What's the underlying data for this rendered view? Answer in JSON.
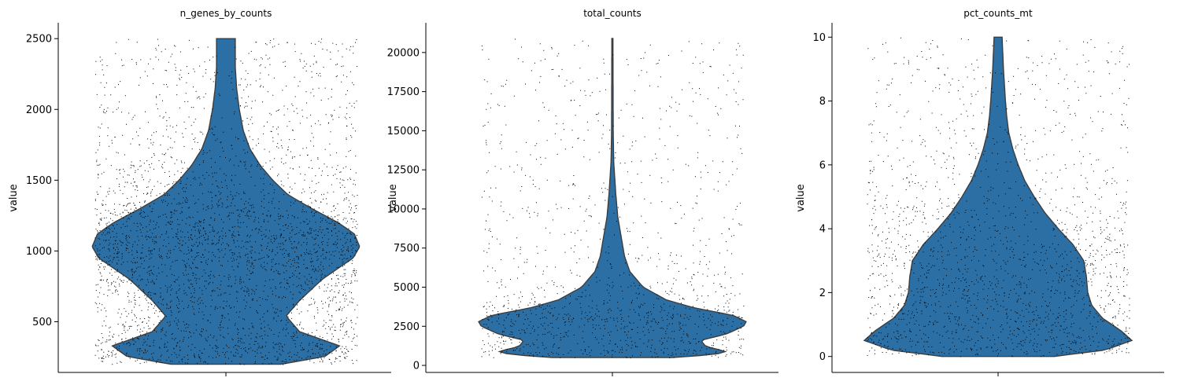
{
  "chart_data": [
    {
      "type": "violin",
      "title": "n_genes_by_counts",
      "ylabel": "value",
      "ylim": [
        142,
        2612
      ],
      "yticks": [
        500,
        1000,
        1500,
        2000,
        2500
      ],
      "y_tick_labels": [
        "500",
        "1000",
        "1500",
        "2000",
        "2500"
      ],
      "x_tick_labels": [
        ""
      ],
      "grid": false,
      "fill_color": "#2b6fa5",
      "point_color": "#000000",
      "range": [
        200,
        2500
      ],
      "density_profile": [
        {
          "value": 200,
          "width": 0.41
        },
        {
          "value": 255,
          "width": 0.74
        },
        {
          "value": 330,
          "width": 0.85
        },
        {
          "value": 430,
          "width": 0.55
        },
        {
          "value": 540,
          "width": 0.45
        },
        {
          "value": 650,
          "width": 0.55
        },
        {
          "value": 800,
          "width": 0.72
        },
        {
          "value": 950,
          "width": 0.95
        },
        {
          "value": 1030,
          "width": 1.0
        },
        {
          "value": 1120,
          "width": 0.96
        },
        {
          "value": 1200,
          "width": 0.84
        },
        {
          "value": 1300,
          "width": 0.64
        },
        {
          "value": 1400,
          "width": 0.46
        },
        {
          "value": 1500,
          "width": 0.35
        },
        {
          "value": 1600,
          "width": 0.26
        },
        {
          "value": 1720,
          "width": 0.18
        },
        {
          "value": 1850,
          "width": 0.13
        },
        {
          "value": 2000,
          "width": 0.1
        },
        {
          "value": 2150,
          "width": 0.08
        },
        {
          "value": 2300,
          "width": 0.07
        },
        {
          "value": 2400,
          "width": 0.07
        },
        {
          "value": 2500,
          "width": 0.07
        }
      ]
    },
    {
      "type": "violin",
      "title": "total_counts",
      "ylabel": "value",
      "ylim": [
        -450,
        21900
      ],
      "yticks": [
        0,
        2500,
        5000,
        7500,
        10000,
        12500,
        15000,
        17500,
        20000
      ],
      "y_tick_labels": [
        "0",
        "2500",
        "5000",
        "7500",
        "10000",
        "12500",
        "15000",
        "17500",
        "20000"
      ],
      "x_tick_labels": [
        ""
      ],
      "grid": false,
      "fill_color": "#2b6fa5",
      "point_color": "#000000",
      "range": [
        500,
        20900
      ],
      "density_profile": [
        {
          "value": 500,
          "width": 0.45
        },
        {
          "value": 700,
          "width": 0.77
        },
        {
          "value": 900,
          "width": 0.85
        },
        {
          "value": 1200,
          "width": 0.7
        },
        {
          "value": 1600,
          "width": 0.66
        },
        {
          "value": 2000,
          "width": 0.85
        },
        {
          "value": 2500,
          "width": 0.98
        },
        {
          "value": 2800,
          "width": 1.0
        },
        {
          "value": 3200,
          "width": 0.9
        },
        {
          "value": 3700,
          "width": 0.6
        },
        {
          "value": 4200,
          "width": 0.4
        },
        {
          "value": 5000,
          "width": 0.23
        },
        {
          "value": 6000,
          "width": 0.13
        },
        {
          "value": 7000,
          "width": 0.09
        },
        {
          "value": 8000,
          "width": 0.07
        },
        {
          "value": 9500,
          "width": 0.04
        },
        {
          "value": 11000,
          "width": 0.025
        },
        {
          "value": 13000,
          "width": 0.01
        },
        {
          "value": 15000,
          "width": 0.006
        },
        {
          "value": 20900,
          "width": 0.004
        }
      ]
    },
    {
      "type": "violin",
      "title": "pct_counts_mt",
      "ylabel": "value",
      "ylim": [
        -0.5,
        10.45
      ],
      "yticks": [
        0,
        2,
        4,
        6,
        8,
        10
      ],
      "y_tick_labels": [
        "0",
        "2",
        "4",
        "6",
        "8",
        "10"
      ],
      "x_tick_labels": [
        ""
      ],
      "grid": false,
      "fill_color": "#2b6fa5",
      "point_color": "#000000",
      "range": [
        0,
        10
      ],
      "density_profile": [
        {
          "value": 0.0,
          "width": 0.42
        },
        {
          "value": 0.2,
          "width": 0.8
        },
        {
          "value": 0.5,
          "width": 1.0
        },
        {
          "value": 0.8,
          "width": 0.92
        },
        {
          "value": 1.2,
          "width": 0.78
        },
        {
          "value": 1.6,
          "width": 0.7
        },
        {
          "value": 2.0,
          "width": 0.67
        },
        {
          "value": 2.5,
          "width": 0.66
        },
        {
          "value": 3.0,
          "width": 0.64
        },
        {
          "value": 3.5,
          "width": 0.56
        },
        {
          "value": 4.0,
          "width": 0.45
        },
        {
          "value": 4.5,
          "width": 0.35
        },
        {
          "value": 5.0,
          "width": 0.27
        },
        {
          "value": 5.5,
          "width": 0.2
        },
        {
          "value": 6.0,
          "width": 0.15
        },
        {
          "value": 6.5,
          "width": 0.11
        },
        {
          "value": 7.0,
          "width": 0.08
        },
        {
          "value": 7.5,
          "width": 0.065
        },
        {
          "value": 8.0,
          "width": 0.055
        },
        {
          "value": 9.0,
          "width": 0.04
        },
        {
          "value": 9.5,
          "width": 0.035
        },
        {
          "value": 10.0,
          "width": 0.03
        }
      ]
    }
  ]
}
